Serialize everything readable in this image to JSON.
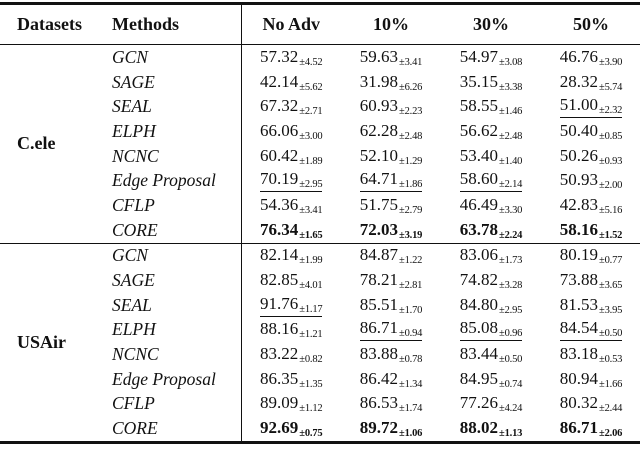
{
  "colors": {
    "background": "#ffffff",
    "text": "#111111",
    "rule": "#111111"
  },
  "table": {
    "headers": {
      "datasets": "Datasets",
      "methods": "Methods",
      "cols": [
        "No Adv",
        "10%",
        "30%",
        "50%"
      ]
    },
    "groups": [
      {
        "dataset": "C.ele",
        "rows": [
          {
            "method": "GCN",
            "cells": [
              {
                "m": "57.32",
                "e": "4.52"
              },
              {
                "m": "59.63",
                "e": "3.41"
              },
              {
                "m": "54.97",
                "e": "3.08"
              },
              {
                "m": "46.76",
                "e": "3.90"
              }
            ]
          },
          {
            "method": "SAGE",
            "cells": [
              {
                "m": "42.14",
                "e": "5.62"
              },
              {
                "m": "31.98",
                "e": "6.26"
              },
              {
                "m": "35.15",
                "e": "3.38"
              },
              {
                "m": "28.32",
                "e": "5.74"
              }
            ]
          },
          {
            "method": "SEAL",
            "cells": [
              {
                "m": "67.32",
                "e": "2.71"
              },
              {
                "m": "60.93",
                "e": "2.23"
              },
              {
                "m": "58.55",
                "e": "1.46"
              },
              {
                "m": "51.00",
                "e": "2.32",
                "u": true
              }
            ]
          },
          {
            "method": "ELPH",
            "cells": [
              {
                "m": "66.06",
                "e": "3.00"
              },
              {
                "m": "62.28",
                "e": "2.48"
              },
              {
                "m": "56.62",
                "e": "2.48"
              },
              {
                "m": "50.40",
                "e": "0.85"
              }
            ]
          },
          {
            "method": "NCNC",
            "cells": [
              {
                "m": "60.42",
                "e": "1.89"
              },
              {
                "m": "52.10",
                "e": "1.29"
              },
              {
                "m": "53.40",
                "e": "1.40"
              },
              {
                "m": "50.26",
                "e": "0.93"
              }
            ]
          },
          {
            "method": "Edge Proposal",
            "cells": [
              {
                "m": "70.19",
                "e": "2.95",
                "u": true
              },
              {
                "m": "64.71",
                "e": "1.86",
                "u": true
              },
              {
                "m": "58.60",
                "e": "2.14",
                "u": true
              },
              {
                "m": "50.93",
                "e": "2.00"
              }
            ]
          },
          {
            "method": "CFLP",
            "cells": [
              {
                "m": "54.36",
                "e": "3.41"
              },
              {
                "m": "51.75",
                "e": "2.79"
              },
              {
                "m": "46.49",
                "e": "3.30"
              },
              {
                "m": "42.83",
                "e": "5.16"
              }
            ]
          },
          {
            "method": "CORE",
            "cells": [
              {
                "m": "76.34",
                "e": "1.65",
                "b": true
              },
              {
                "m": "72.03",
                "e": "3.19",
                "b": true
              },
              {
                "m": "63.78",
                "e": "2.24",
                "b": true
              },
              {
                "m": "58.16",
                "e": "1.52",
                "b": true
              }
            ]
          }
        ]
      },
      {
        "dataset": "USAir",
        "rows": [
          {
            "method": "GCN",
            "cells": [
              {
                "m": "82.14",
                "e": "1.99"
              },
              {
                "m": "84.87",
                "e": "1.22"
              },
              {
                "m": "83.06",
                "e": "1.73"
              },
              {
                "m": "80.19",
                "e": "0.77"
              }
            ]
          },
          {
            "method": "SAGE",
            "cells": [
              {
                "m": "82.85",
                "e": "4.01"
              },
              {
                "m": "78.21",
                "e": "2.81"
              },
              {
                "m": "74.82",
                "e": "3.28"
              },
              {
                "m": "73.88",
                "e": "3.65"
              }
            ]
          },
          {
            "method": "SEAL",
            "cells": [
              {
                "m": "91.76",
                "e": "1.17",
                "u": true
              },
              {
                "m": "85.51",
                "e": "1.70"
              },
              {
                "m": "84.80",
                "e": "2.95"
              },
              {
                "m": "81.53",
                "e": "3.95"
              }
            ]
          },
          {
            "method": "ELPH",
            "cells": [
              {
                "m": "88.16",
                "e": "1.21"
              },
              {
                "m": "86.71",
                "e": "0.94",
                "u": true
              },
              {
                "m": "85.08",
                "e": "0.96",
                "u": true
              },
              {
                "m": "84.54",
                "e": "0.50",
                "u": true
              }
            ]
          },
          {
            "method": "NCNC",
            "cells": [
              {
                "m": "83.22",
                "e": "0.82"
              },
              {
                "m": "83.88",
                "e": "0.78"
              },
              {
                "m": "83.44",
                "e": "0.50"
              },
              {
                "m": "83.18",
                "e": "0.53"
              }
            ]
          },
          {
            "method": "Edge Proposal",
            "cells": [
              {
                "m": "86.35",
                "e": "1.35"
              },
              {
                "m": "86.42",
                "e": "1.34"
              },
              {
                "m": "84.95",
                "e": "0.74"
              },
              {
                "m": "80.94",
                "e": "1.66"
              }
            ]
          },
          {
            "method": "CFLP",
            "cells": [
              {
                "m": "89.09",
                "e": "1.12"
              },
              {
                "m": "86.53",
                "e": "1.74"
              },
              {
                "m": "77.26",
                "e": "4.24"
              },
              {
                "m": "80.32",
                "e": "2.44"
              }
            ]
          },
          {
            "method": "CORE",
            "cells": [
              {
                "m": "92.69",
                "e": "0.75",
                "b": true
              },
              {
                "m": "89.72",
                "e": "1.06",
                "b": true
              },
              {
                "m": "88.02",
                "e": "1.13",
                "b": true
              },
              {
                "m": "86.71",
                "e": "2.06",
                "b": true
              }
            ]
          }
        ]
      }
    ]
  }
}
